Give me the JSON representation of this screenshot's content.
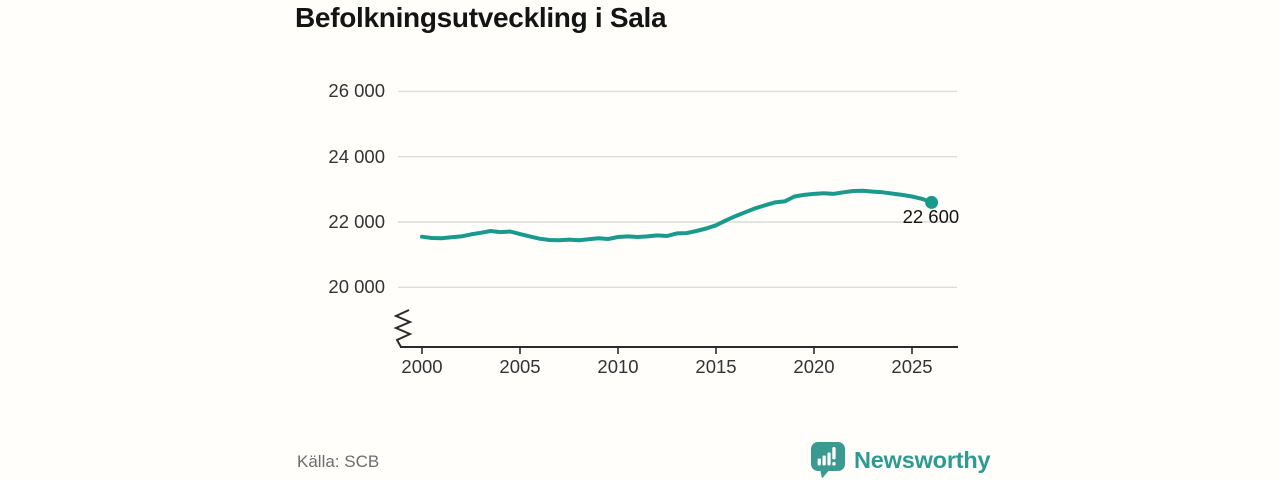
{
  "title": "Befolkningsutveckling i Sala",
  "chart_data": {
    "type": "line",
    "title": "Befolkningsutveckling i Sala",
    "xlabel": "",
    "ylabel": "",
    "xlim": [
      1998.8,
      2027.3
    ],
    "ylim": [
      19800,
      26400
    ],
    "axis_break": true,
    "grid": true,
    "line_color": "#1a9a8c",
    "grid_color": "#dcdcda",
    "axis_color": "#2b2b2b",
    "series": [
      {
        "name": "Befolkning",
        "x": [
          2000,
          2000.5,
          2001,
          2001.5,
          2002,
          2002.5,
          2003,
          2003.5,
          2004,
          2004.5,
          2005,
          2005.5,
          2006,
          2006.5,
          2007,
          2007.5,
          2008,
          2008.5,
          2009,
          2009.5,
          2010,
          2010.5,
          2011,
          2011.5,
          2012,
          2012.5,
          2013,
          2013.5,
          2014,
          2014.5,
          2015,
          2015.5,
          2016,
          2016.5,
          2017,
          2017.5,
          2018,
          2018.5,
          2019,
          2019.5,
          2020,
          2020.5,
          2021,
          2021.5,
          2022,
          2022.5,
          2023,
          2023.5,
          2024,
          2024.5,
          2025,
          2025.5,
          2026
        ],
        "values": [
          21550,
          21510,
          21500,
          21530,
          21560,
          21620,
          21670,
          21725,
          21690,
          21710,
          21630,
          21560,
          21490,
          21450,
          21440,
          21460,
          21440,
          21470,
          21500,
          21480,
          21540,
          21560,
          21540,
          21560,
          21590,
          21570,
          21650,
          21660,
          21725,
          21800,
          21900,
          22050,
          22180,
          22300,
          22420,
          22510,
          22600,
          22630,
          22780,
          22830,
          22860,
          22880,
          22860,
          22910,
          22950,
          22960,
          22930,
          22910,
          22870,
          22830,
          22780,
          22710,
          22600
        ]
      }
    ],
    "x_ticks": [
      {
        "value": 2000,
        "label": "2000"
      },
      {
        "value": 2005,
        "label": "2005"
      },
      {
        "value": 2010,
        "label": "2010"
      },
      {
        "value": 2015,
        "label": "2015"
      },
      {
        "value": 2020,
        "label": "2020"
      },
      {
        "value": 2025,
        "label": "2025"
      }
    ],
    "y_ticks": [
      {
        "value": 20000,
        "label": "20 000"
      },
      {
        "value": 22000,
        "label": "22 000"
      },
      {
        "value": 24000,
        "label": "24 000"
      },
      {
        "value": 26000,
        "label": "26 000"
      }
    ],
    "end_annotation": {
      "x": 2026,
      "value": 22600,
      "label": "22 600"
    }
  },
  "footer": {
    "source": "Källa: SCB",
    "brand": "Newsworthy",
    "brand_color": "#2e9b92"
  }
}
